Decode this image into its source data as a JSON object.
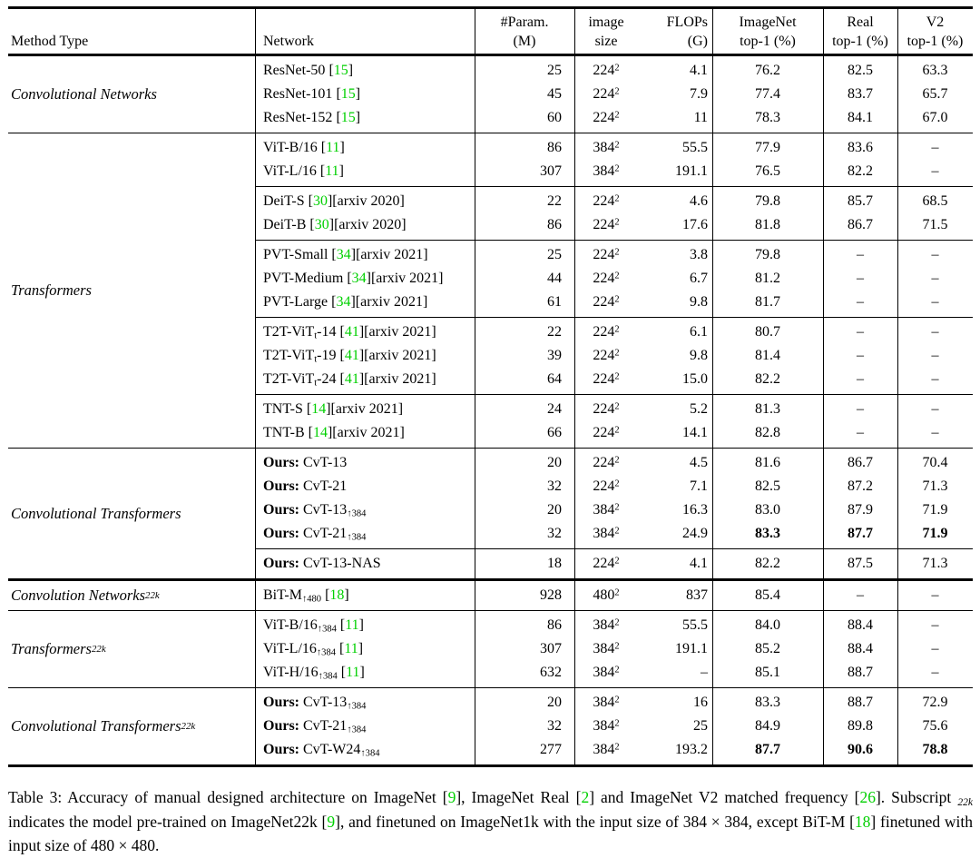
{
  "colors": {
    "citation_green": "#00d000",
    "rule_black": "#000000"
  },
  "header": {
    "col_method": "Method Type",
    "col_network": "Network",
    "col_param_1": "#Param.",
    "col_param_2": "(M)",
    "col_image_1": "image",
    "col_image_2": "size",
    "col_flops_1": "FLOPs",
    "col_flops_2": "(G)",
    "col_in_1": "ImageNet",
    "col_in_2": "top-1 (%)",
    "col_real_1": "Real",
    "col_real_2": "top-1 (%)",
    "col_v2_1": "V2",
    "col_v2_2": "top-1 (%)"
  },
  "sections": [
    {
      "rule": "none",
      "method": {
        "label": "Convolutional Networks",
        "sub": ""
      },
      "groups": [
        {
          "rows": [
            {
              "name": [
                {
                  "t": "ResNet-50 "
                },
                {
                  "c": "15"
                }
              ],
              "param": "25",
              "size": "224",
              "flops": "4.1",
              "in1k": "76.2",
              "real": "82.5",
              "v2": "63.3",
              "boldMetrics": false
            },
            {
              "name": [
                {
                  "t": "ResNet-101 "
                },
                {
                  "c": "15"
                }
              ],
              "param": "45",
              "size": "224",
              "flops": "7.9",
              "in1k": "77.4",
              "real": "83.7",
              "v2": "65.7",
              "boldMetrics": false
            },
            {
              "name": [
                {
                  "t": "ResNet-152 "
                },
                {
                  "c": "15"
                }
              ],
              "param": "60",
              "size": "224",
              "flops": "11",
              "in1k": "78.3",
              "real": "84.1",
              "v2": "67.0",
              "boldMetrics": false
            }
          ]
        }
      ]
    },
    {
      "rule": "medium",
      "method": {
        "label": "Transformers",
        "sub": ""
      },
      "groups": [
        {
          "rows": [
            {
              "name": [
                {
                  "t": "ViT-B/16 "
                },
                {
                  "c": "11"
                }
              ],
              "param": "86",
              "size": "384",
              "flops": "55.5",
              "in1k": "77.9",
              "real": "83.6",
              "v2": "–",
              "boldMetrics": false
            },
            {
              "name": [
                {
                  "t": "ViT-L/16 "
                },
                {
                  "c": "11"
                }
              ],
              "param": "307",
              "size": "384",
              "flops": "191.1",
              "in1k": "76.5",
              "real": "82.2",
              "v2": "–",
              "boldMetrics": false
            }
          ]
        },
        {
          "rows": [
            {
              "name": [
                {
                  "t": "DeiT-S "
                },
                {
                  "c": "30"
                },
                {
                  "t": "[arxiv 2020]"
                }
              ],
              "param": "22",
              "size": "224",
              "flops": "4.6",
              "in1k": "79.8",
              "real": "85.7",
              "v2": "68.5",
              "boldMetrics": false
            },
            {
              "name": [
                {
                  "t": "DeiT-B "
                },
                {
                  "c": "30"
                },
                {
                  "t": "[arxiv 2020]"
                }
              ],
              "param": "86",
              "size": "224",
              "flops": "17.6",
              "in1k": "81.8",
              "real": "86.7",
              "v2": "71.5",
              "boldMetrics": false
            }
          ]
        },
        {
          "rows": [
            {
              "name": [
                {
                  "t": "PVT-Small "
                },
                {
                  "c": "34"
                },
                {
                  "t": "[arxiv 2021]"
                }
              ],
              "param": "25",
              "size": "224",
              "flops": "3.8",
              "in1k": "79.8",
              "real": "–",
              "v2": "–",
              "boldMetrics": false
            },
            {
              "name": [
                {
                  "t": "PVT-Medium "
                },
                {
                  "c": "34"
                },
                {
                  "t": "[arxiv 2021]"
                }
              ],
              "param": "44",
              "size": "224",
              "flops": "6.7",
              "in1k": "81.2",
              "real": "–",
              "v2": "–",
              "boldMetrics": false
            },
            {
              "name": [
                {
                  "t": "PVT-Large "
                },
                {
                  "c": "34"
                },
                {
                  "t": "[arxiv 2021]"
                }
              ],
              "param": "61",
              "size": "224",
              "flops": "9.8",
              "in1k": "81.7",
              "real": "–",
              "v2": "–",
              "boldMetrics": false
            }
          ]
        },
        {
          "rows": [
            {
              "name": [
                {
                  "t": "T2T-ViT"
                },
                {
                  "s": "t"
                },
                {
                  "t": "-14 "
                },
                {
                  "c": "41"
                },
                {
                  "t": "[arxiv 2021]"
                }
              ],
              "param": "22",
              "size": "224",
              "flops": "6.1",
              "in1k": "80.7",
              "real": "–",
              "v2": "–",
              "boldMetrics": false
            },
            {
              "name": [
                {
                  "t": "T2T-ViT"
                },
                {
                  "s": "t"
                },
                {
                  "t": "-19 "
                },
                {
                  "c": "41"
                },
                {
                  "t": "[arxiv 2021]"
                }
              ],
              "param": "39",
              "size": "224",
              "flops": "9.8",
              "in1k": "81.4",
              "real": "–",
              "v2": "–",
              "boldMetrics": false
            },
            {
              "name": [
                {
                  "t": "T2T-ViT"
                },
                {
                  "s": "t"
                },
                {
                  "t": "-24 "
                },
                {
                  "c": "41"
                },
                {
                  "t": "[arxiv 2021]"
                }
              ],
              "param": "64",
              "size": "224",
              "flops": "15.0",
              "in1k": "82.2",
              "real": "–",
              "v2": "–",
              "boldMetrics": false
            }
          ]
        },
        {
          "rows": [
            {
              "name": [
                {
                  "t": "TNT-S "
                },
                {
                  "c": "14"
                },
                {
                  "t": "[arxiv 2021]"
                }
              ],
              "param": "24",
              "size": "224",
              "flops": "5.2",
              "in1k": "81.3",
              "real": "–",
              "v2": "–",
              "boldMetrics": false
            },
            {
              "name": [
                {
                  "t": "TNT-B "
                },
                {
                  "c": "14"
                },
                {
                  "t": "[arxiv 2021]"
                }
              ],
              "param": "66",
              "size": "224",
              "flops": "14.1",
              "in1k": "82.8",
              "real": "–",
              "v2": "–",
              "boldMetrics": false
            }
          ]
        }
      ]
    },
    {
      "rule": "medium",
      "method": {
        "label": "Convolutional Transformers",
        "sub": ""
      },
      "groups": [
        {
          "rows": [
            {
              "name": [
                {
                  "b": "Ours: "
                },
                {
                  "t": "CvT-13"
                }
              ],
              "param": "20",
              "size": "224",
              "flops": "4.5",
              "in1k": "81.6",
              "real": "86.7",
              "v2": "70.4",
              "boldMetrics": false
            },
            {
              "name": [
                {
                  "b": "Ours: "
                },
                {
                  "t": "CvT-21"
                }
              ],
              "param": "32",
              "size": "224",
              "flops": "7.1",
              "in1k": "82.5",
              "real": "87.2",
              "v2": "71.3",
              "boldMetrics": false
            },
            {
              "name": [
                {
                  "b": "Ours: "
                },
                {
                  "t": "CvT-13"
                },
                {
                  "s": "↑384"
                }
              ],
              "param": "20",
              "size": "384",
              "flops": "16.3",
              "in1k": "83.0",
              "real": "87.9",
              "v2": "71.9",
              "boldMetrics": false
            },
            {
              "name": [
                {
                  "b": "Ours: "
                },
                {
                  "t": "CvT-21"
                },
                {
                  "s": "↑384"
                }
              ],
              "param": "32",
              "size": "384",
              "flops": "24.9",
              "in1k": "83.3",
              "real": "87.7",
              "v2": "71.9",
              "boldMetrics": true
            }
          ]
        },
        {
          "rows": [
            {
              "name": [
                {
                  "b": "Ours: "
                },
                {
                  "t": "CvT-13-NAS"
                }
              ],
              "param": "18",
              "size": "224",
              "flops": "4.1",
              "in1k": "82.2",
              "real": "87.5",
              "v2": "71.3",
              "boldMetrics": false
            }
          ]
        }
      ]
    },
    {
      "rule": "thick",
      "method": {
        "label": "Convolution Networks",
        "sub": "22k"
      },
      "groups": [
        {
          "rows": [
            {
              "name": [
                {
                  "t": "BiT-M"
                },
                {
                  "s": "↑480"
                },
                {
                  "t": " "
                },
                {
                  "c": "18"
                }
              ],
              "param": "928",
              "size": "480",
              "flops": "837",
              "in1k": "85.4",
              "real": "–",
              "v2": "–",
              "boldMetrics": false
            }
          ]
        }
      ]
    },
    {
      "rule": "medium",
      "method": {
        "label": "Transformers",
        "sub": "22k"
      },
      "groups": [
        {
          "rows": [
            {
              "name": [
                {
                  "t": "ViT-B/16"
                },
                {
                  "s": "↑384"
                },
                {
                  "t": " "
                },
                {
                  "c": "11"
                }
              ],
              "param": "86",
              "size": "384",
              "flops": "55.5",
              "in1k": "84.0",
              "real": "88.4",
              "v2": "–",
              "boldMetrics": false
            },
            {
              "name": [
                {
                  "t": "ViT-L/16"
                },
                {
                  "s": "↑384"
                },
                {
                  "t": " "
                },
                {
                  "c": "11"
                }
              ],
              "param": "307",
              "size": "384",
              "flops": "191.1",
              "in1k": "85.2",
              "real": "88.4",
              "v2": "–",
              "boldMetrics": false
            },
            {
              "name": [
                {
                  "t": "ViT-H/16"
                },
                {
                  "s": "↑384"
                },
                {
                  "t": " "
                },
                {
                  "c": "11"
                }
              ],
              "param": "632",
              "size": "384",
              "flops": "–",
              "in1k": "85.1",
              "real": "88.7",
              "v2": "–",
              "boldMetrics": false
            }
          ]
        }
      ]
    },
    {
      "rule": "medium",
      "method": {
        "label": "Convolutional Transformers",
        "sub": "22k"
      },
      "groups": [
        {
          "rows": [
            {
              "name": [
                {
                  "b": "Ours: "
                },
                {
                  "t": "CvT-13"
                },
                {
                  "s": "↑384"
                }
              ],
              "param": "20",
              "size": "384",
              "flops": "16",
              "in1k": "83.3",
              "real": "88.7",
              "v2": "72.9",
              "boldMetrics": false
            },
            {
              "name": [
                {
                  "b": "Ours: "
                },
                {
                  "t": "CvT-21"
                },
                {
                  "s": "↑384"
                }
              ],
              "param": "32",
              "size": "384",
              "flops": "25",
              "in1k": "84.9",
              "real": "89.8",
              "v2": "75.6",
              "boldMetrics": false
            },
            {
              "name": [
                {
                  "b": "Ours: "
                },
                {
                  "t": "CvT-W24"
                },
                {
                  "s": "↑384"
                }
              ],
              "param": "277",
              "size": "384",
              "flops": "193.2",
              "in1k": "87.7",
              "real": "90.6",
              "v2": "78.8",
              "boldMetrics": true
            }
          ]
        }
      ]
    }
  ],
  "caption": [
    {
      "t": "Table 3: Accuracy of manual designed architecture on ImageNet "
    },
    {
      "c": "9"
    },
    {
      "t": ", ImageNet Real "
    },
    {
      "c": "2"
    },
    {
      "t": " and ImageNet V2 matched frequency "
    },
    {
      "c": "26"
    },
    {
      "t": ". Subscript "
    },
    {
      "s": "22k"
    },
    {
      "t": " indicates the model pre-trained on ImageNet22k "
    },
    {
      "c": "9"
    },
    {
      "t": ", and finetuned on ImageNet1k with the input size of 384 × 384, except BiT-M "
    },
    {
      "c": "18"
    },
    {
      "t": " finetuned with input size of 480 × 480."
    }
  ]
}
